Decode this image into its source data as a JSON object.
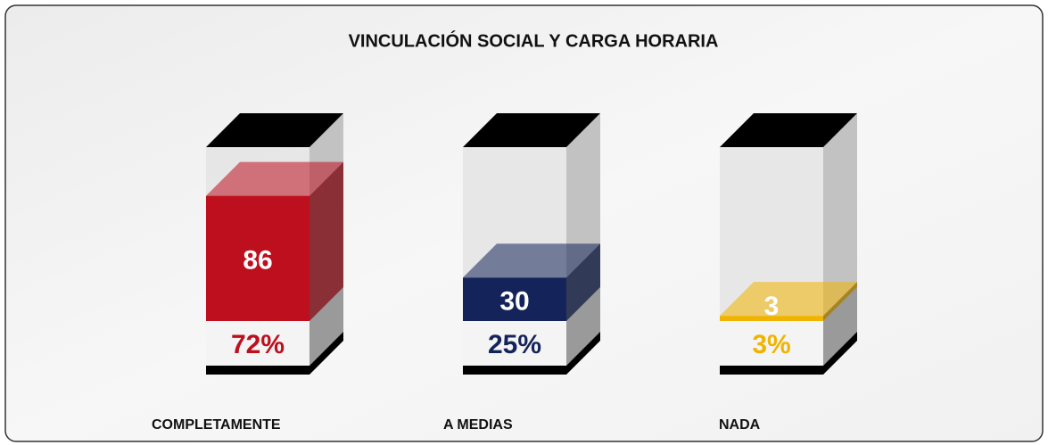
{
  "chart_data": {
    "type": "box3d",
    "title": "VINCULACIÓN SOCIAL Y CARGA HORARIA",
    "categories": [
      "COMPLETAMENTE",
      "A MEDIAS",
      "NADA"
    ],
    "values": [
      86,
      30,
      3
    ],
    "percent_values": [
      72,
      25,
      3
    ],
    "percent_labels": [
      "72%",
      "25%",
      "3%"
    ],
    "colors": [
      "#be0f1e",
      "#14245a",
      "#f0b400"
    ],
    "ylim": [
      0,
      100
    ]
  }
}
